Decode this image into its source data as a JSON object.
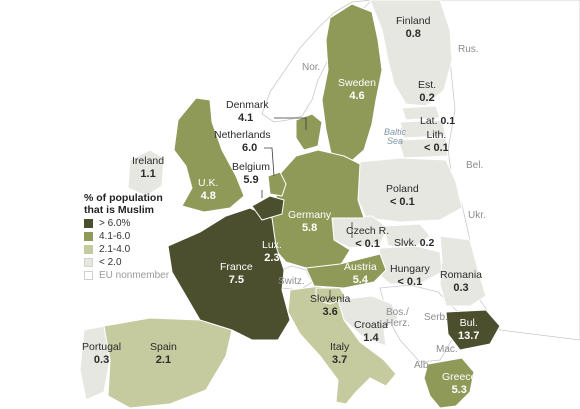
{
  "legend": {
    "title": "% of population that is Muslim",
    "items": [
      {
        "label": "> 6.0%",
        "color": "#4b4f2e"
      },
      {
        "label": "4.1-6.0",
        "color": "#8f9a58"
      },
      {
        "label": "2.1-4.0",
        "color": "#c6cb9f"
      },
      {
        "label": "< 2.0",
        "color": "#e7e7e2"
      },
      {
        "label": "EU nonmember",
        "color": "#ffffff"
      }
    ]
  },
  "countries": {
    "finland": {
      "name": "Finland",
      "value": "0.8"
    },
    "sweden": {
      "name": "Sweden",
      "value": "4.6"
    },
    "estonia": {
      "name": "Est.",
      "value": "0.2"
    },
    "latvia": {
      "name": "Lat.",
      "value": "0.1"
    },
    "lithuania": {
      "name": "Lith.",
      "value": "< 0.1"
    },
    "denmark": {
      "name": "Denmark",
      "value": "4.1"
    },
    "netherlands": {
      "name": "Netherlands",
      "value": "6.0"
    },
    "belgium": {
      "name": "Belgium",
      "value": "5.9"
    },
    "ireland": {
      "name": "Ireland",
      "value": "1.1"
    },
    "uk": {
      "name": "U.K.",
      "value": "4.8"
    },
    "poland": {
      "name": "Poland",
      "value": "< 0.1"
    },
    "germany": {
      "name": "Germany",
      "value": "5.8"
    },
    "czech": {
      "name": "Czech R.",
      "value": "< 0.1"
    },
    "slovakia": {
      "name": "Slvk.",
      "value": "0.2"
    },
    "luxembourg": {
      "name": "Lux.",
      "value": "2.3"
    },
    "france": {
      "name": "France",
      "value": "7.5"
    },
    "austria": {
      "name": "Austria",
      "value": "5.4"
    },
    "hungary": {
      "name": "Hungary",
      "value": "< 0.1"
    },
    "romania": {
      "name": "Romania",
      "value": "0.3"
    },
    "slovenia": {
      "name": "Slovenia",
      "value": "3.6"
    },
    "croatia": {
      "name": "Croatia",
      "value": "1.4"
    },
    "bulgaria": {
      "name": "Bul.",
      "value": "13.7"
    },
    "portugal": {
      "name": "Portugal",
      "value": "0.3"
    },
    "spain": {
      "name": "Spain",
      "value": "2.1"
    },
    "italy": {
      "name": "Italy",
      "value": "3.7"
    },
    "greece": {
      "name": "Greece",
      "value": "5.3"
    }
  },
  "nonmembers": {
    "norway": "Nor.",
    "russia": "Rus.",
    "belarus": "Bel.",
    "ukraine": "Ukr.",
    "switzerland": "Switz.",
    "serbia": "Serb.",
    "bosnia": "Bos./ Herz.",
    "macedonia": "Mac.",
    "albania": "Alb."
  },
  "water": {
    "baltic": "Baltic Sea"
  }
}
